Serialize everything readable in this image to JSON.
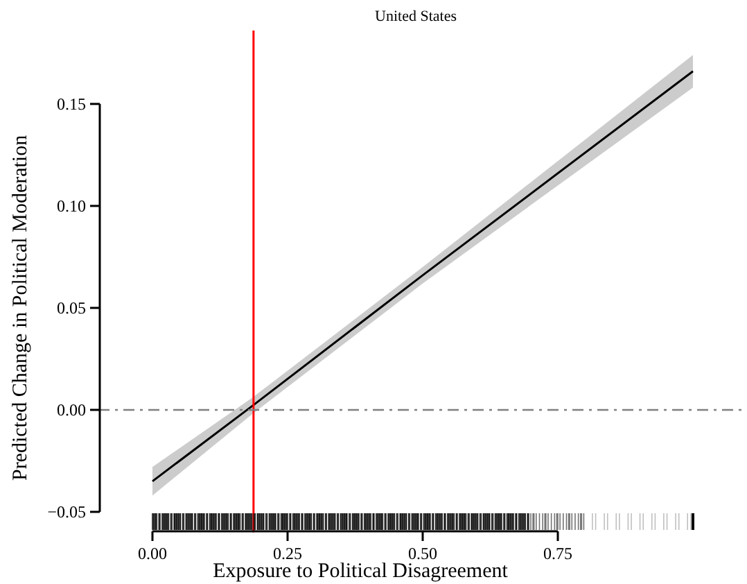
{
  "chart_data": {
    "type": "line",
    "title": "United States",
    "xlabel": "Exposure to Political Disagreement",
    "ylabel": "Predicted Change in Political Moderation",
    "xlim": [
      -0.1,
      1.1
    ],
    "xticks": [
      {
        "value": 0,
        "label": "0.00"
      },
      {
        "value": 0.25,
        "label": "0.25"
      },
      {
        "value": 0.5,
        "label": "0.50"
      },
      {
        "value": 0.75,
        "label": "0.75"
      }
    ],
    "ylim": [
      -0.06,
      0.186
    ],
    "yticks": [
      {
        "value": -0.05,
        "label": "−0.05"
      },
      {
        "value": 0,
        "label": "0.00"
      },
      {
        "value": 0.05,
        "label": "0.05"
      },
      {
        "value": 0.1,
        "label": "0.10"
      },
      {
        "value": 0.15,
        "label": "0.15"
      }
    ],
    "series": [
      {
        "color": "#000000",
        "x": [
          0,
          0.185,
          0.5,
          1
        ],
        "values": [
          -0.035,
          0.002,
          0.066,
          0.166
        ],
        "lower": [
          -0.042,
          -0.002,
          0.062,
          0.158
        ],
        "upper": [
          -0.028,
          0.006,
          0.07,
          0.174
        ]
      }
    ],
    "ref_lines": [
      {
        "axis": "x",
        "value": 0.187,
        "color": "#ff0000",
        "line_style": "solid"
      },
      {
        "axis": "y",
        "value": 0,
        "color": "#808080",
        "line_style": "dashdot"
      }
    ],
    "grid": false,
    "marker": "none",
    "line_style": "solid"
  }
}
